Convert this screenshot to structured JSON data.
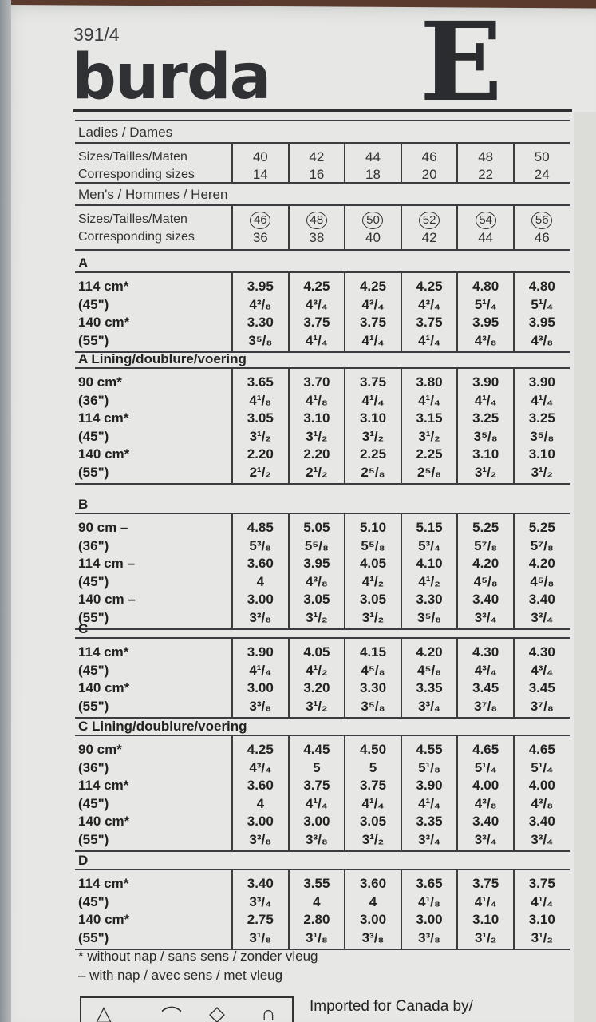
{
  "header": {
    "pattern_number": "391/4",
    "brand": "burda",
    "size_letter": "E"
  },
  "ladies": {
    "title": "Ladies / Dames",
    "row1_label": "Sizes/Tailles/Maten",
    "row2_label": "Corresponding sizes",
    "sizes": [
      "40",
      "42",
      "44",
      "46",
      "48",
      "50"
    ],
    "corresponding": [
      "14",
      "16",
      "18",
      "20",
      "22",
      "24"
    ]
  },
  "mens": {
    "title": "Men's / Hommes / Heren",
    "row1_label": "Sizes/Tailles/Maten",
    "row2_label": "Corresponding sizes",
    "sizes": [
      "46",
      "48",
      "50",
      "52",
      "54",
      "56"
    ],
    "corresponding": [
      "36",
      "38",
      "40",
      "42",
      "44",
      "46"
    ]
  },
  "sections": [
    {
      "title": "A",
      "labels": [
        "114 cm*",
        "(45\")",
        "140 cm*",
        "(55\")"
      ],
      "cols": [
        [
          "3.95",
          "4³/₈",
          "3.30",
          "3⁵/₈"
        ],
        [
          "4.25",
          "4³/₄",
          "3.75",
          "4¹/₄"
        ],
        [
          "4.25",
          "4³/₄",
          "3.75",
          "4¹/₄"
        ],
        [
          "4.25",
          "4³/₄",
          "3.75",
          "4¹/₄"
        ],
        [
          "4.80",
          "5¹/₄",
          "3.95",
          "4³/₈"
        ],
        [
          "4.80",
          "5¹/₄",
          "3.95",
          "4³/₈"
        ]
      ]
    },
    {
      "title": "A  Lining/doublure/voering",
      "labels": [
        "90 cm*",
        "(36\")",
        "114 cm*",
        "(45\")",
        "140 cm*",
        "(55\")"
      ],
      "cols": [
        [
          "3.65",
          "4¹/₈",
          "3.05",
          "3¹/₂",
          "2.20",
          "2¹/₂"
        ],
        [
          "3.70",
          "4¹/₈",
          "3.10",
          "3¹/₂",
          "2.20",
          "2¹/₂"
        ],
        [
          "3.75",
          "4¹/₄",
          "3.10",
          "3¹/₂",
          "2.25",
          "2⁵/₈"
        ],
        [
          "3.80",
          "4¹/₄",
          "3.15",
          "3¹/₂",
          "2.25",
          "2⁵/₈"
        ],
        [
          "3.90",
          "4¹/₄",
          "3.25",
          "3⁵/₈",
          "3.10",
          "3¹/₂"
        ],
        [
          "3.90",
          "4¹/₄",
          "3.25",
          "3⁵/₈",
          "3.10",
          "3¹/₂"
        ]
      ]
    },
    {
      "title": "B",
      "labels": [
        "90 cm –",
        "(36\")",
        "114 cm –",
        "(45\")",
        "140 cm –",
        "(55\")"
      ],
      "cols": [
        [
          "4.85",
          "5³/₈",
          "3.60",
          "4",
          "3.00",
          "3³/₈"
        ],
        [
          "5.05",
          "5⁵/₈",
          "3.95",
          "4³/₈",
          "3.05",
          "3¹/₂"
        ],
        [
          "5.10",
          "5⁵/₈",
          "4.05",
          "4¹/₂",
          "3.05",
          "3¹/₂"
        ],
        [
          "5.15",
          "5³/₄",
          "4.10",
          "4¹/₂",
          "3.30",
          "3⁵/₈"
        ],
        [
          "5.25",
          "5⁷/₈",
          "4.20",
          "4⁵/₈",
          "3.40",
          "3³/₄"
        ],
        [
          "5.25",
          "5⁷/₈",
          "4.20",
          "4⁵/₈",
          "3.40",
          "3³/₄"
        ]
      ]
    },
    {
      "title": "C",
      "labels": [
        "114 cm*",
        "(45\")",
        "140 cm*",
        "(55\")"
      ],
      "cols": [
        [
          "3.90",
          "4¹/₄",
          "3.00",
          "3³/₈"
        ],
        [
          "4.05",
          "4¹/₂",
          "3.20",
          "3¹/₂"
        ],
        [
          "4.15",
          "4⁵/₈",
          "3.30",
          "3⁵/₈"
        ],
        [
          "4.20",
          "4⁵/₈",
          "3.35",
          "3³/₄"
        ],
        [
          "4.30",
          "4³/₄",
          "3.45",
          "3⁷/₈"
        ],
        [
          "4.30",
          "4³/₄",
          "3.45",
          "3⁷/₈"
        ]
      ]
    },
    {
      "title": "C  Lining/doublure/voering",
      "labels": [
        "90 cm*",
        "(36\")",
        "114 cm*",
        "(45\")",
        "140 cm*",
        "(55\")"
      ],
      "cols": [
        [
          "4.25",
          "4³/₄",
          "3.60",
          "4",
          "3.00",
          "3³/₈"
        ],
        [
          "4.45",
          "5",
          "3.75",
          "4¹/₄",
          "3.00",
          "3³/₈"
        ],
        [
          "4.50",
          "5",
          "3.75",
          "4¹/₄",
          "3.05",
          "3¹/₂"
        ],
        [
          "4.55",
          "5¹/₈",
          "3.90",
          "4¹/₄",
          "3.35",
          "3³/₄"
        ],
        [
          "4.65",
          "5¹/₄",
          "4.00",
          "4³/₈",
          "3.40",
          "3³/₄"
        ],
        [
          "4.65",
          "5¹/₄",
          "4.00",
          "4³/₈",
          "3.40",
          "3³/₄"
        ]
      ]
    },
    {
      "title": "D",
      "labels": [
        "114 cm*",
        "(45\")",
        "140 cm*",
        "(55\")"
      ],
      "cols": [
        [
          "3.40",
          "3³/₄",
          "2.75",
          "3¹/₈"
        ],
        [
          "3.55",
          "4",
          "2.80",
          "3¹/₈"
        ],
        [
          "3.60",
          "4",
          "3.00",
          "3³/₈"
        ],
        [
          "3.65",
          "4¹/₈",
          "3.00",
          "3³/₈"
        ],
        [
          "3.75",
          "4¹/₄",
          "3.10",
          "3¹/₂"
        ],
        [
          "3.75",
          "4¹/₄",
          "3.10",
          "3¹/₂"
        ]
      ]
    }
  ],
  "footnotes": [
    "* without nap / sans sens / zonder vleug",
    "– with nap / avec sens / met vleug"
  ],
  "imported": "Imported for Canada by/"
}
